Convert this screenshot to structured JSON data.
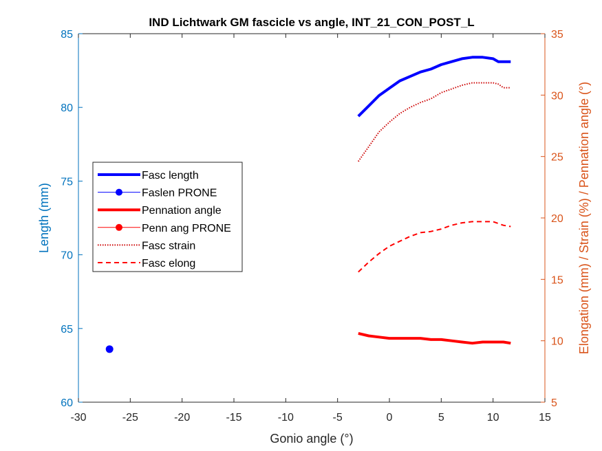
{
  "chart_data": {
    "type": "line",
    "title": "IND Lichtwark GM fascicle vs angle, INT_21_CON_POST_L",
    "xlabel": "Gonio angle (°)",
    "ylabel_left": "Length (mm)",
    "ylabel_right": "Elongation (mm) / Strain (%) / Pennation angle (°)",
    "xlim": [
      -30,
      15
    ],
    "ylim_left": [
      60,
      85
    ],
    "ylim_right": [
      5,
      35
    ],
    "xticks": [
      -30,
      -25,
      -20,
      -15,
      -10,
      -5,
      0,
      5,
      10,
      15
    ],
    "yticks_left": [
      60,
      65,
      70,
      75,
      80,
      85
    ],
    "yticks_right": [
      5,
      10,
      15,
      20,
      25,
      30,
      35
    ],
    "grid": false,
    "legend_position": "left",
    "colors": {
      "left_axis": "#0072BD",
      "right_axis": "#D95319",
      "fasc_length": "#0000ff",
      "pennation": "#ff0000",
      "strain": "#cc0000",
      "elong": "#ff0000"
    },
    "series": [
      {
        "name": "Fasc length",
        "axis": "left",
        "style": "solid-thick",
        "color": "#0000ff",
        "x": [
          -3,
          -2,
          -1,
          0,
          1,
          2,
          3,
          4,
          5,
          6,
          7,
          8,
          9,
          10,
          10.5,
          11,
          11.7
        ],
        "y": [
          79.4,
          80.1,
          80.8,
          81.3,
          81.8,
          82.1,
          82.4,
          82.6,
          82.9,
          83.1,
          83.3,
          83.4,
          83.4,
          83.3,
          83.1,
          83.1,
          83.1
        ]
      },
      {
        "name": "Faslen PRONE",
        "axis": "left",
        "style": "marker",
        "color": "#0000ff",
        "x": [
          -27
        ],
        "y": [
          63.6
        ]
      },
      {
        "name": "Pennation angle",
        "axis": "right",
        "style": "solid-thick",
        "color": "#ff0000",
        "x": [
          -3,
          -2,
          -1,
          0,
          1,
          2,
          3,
          4,
          5,
          6,
          7,
          8,
          9,
          10,
          11,
          11.7
        ],
        "y": [
          10.6,
          10.4,
          10.3,
          10.2,
          10.2,
          10.2,
          10.2,
          10.1,
          10.1,
          10.0,
          9.9,
          9.8,
          9.9,
          9.9,
          9.9,
          9.8
        ]
      },
      {
        "name": "Penn ang PRONE",
        "axis": "right",
        "style": "marker",
        "color": "#ff0000",
        "x": [],
        "y": []
      },
      {
        "name": "Fasc strain",
        "axis": "right",
        "style": "dotted",
        "color": "#cc0000",
        "x": [
          -3,
          -2,
          -1,
          0,
          1,
          2,
          3,
          4,
          5,
          6,
          7,
          8,
          9,
          10,
          10.5,
          11,
          11.7
        ],
        "y": [
          24.6,
          25.8,
          27.0,
          27.8,
          28.5,
          29.0,
          29.4,
          29.7,
          30.2,
          30.5,
          30.8,
          31.0,
          31.0,
          31.0,
          30.9,
          30.6,
          30.6
        ]
      },
      {
        "name": "Fasc elong",
        "axis": "right",
        "style": "dashed",
        "color": "#ff0000",
        "x": [
          -3,
          -2,
          -1,
          0,
          1,
          2,
          3,
          4,
          5,
          6,
          7,
          8,
          9,
          10,
          11,
          11.7
        ],
        "y": [
          15.6,
          16.4,
          17.1,
          17.7,
          18.1,
          18.5,
          18.8,
          18.9,
          19.1,
          19.4,
          19.6,
          19.7,
          19.7,
          19.7,
          19.4,
          19.3
        ]
      }
    ]
  }
}
